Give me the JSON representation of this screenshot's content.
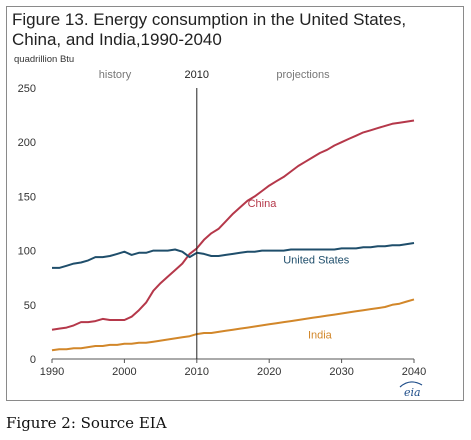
{
  "chart_data": {
    "type": "line",
    "title": "Figure 13. Energy consumption in the United States, China, and India,1990-2040",
    "ylabel": "quadrillion Btu",
    "xlabel": "",
    "xlim": [
      1990,
      2040
    ],
    "ylim": [
      0,
      250
    ],
    "x_ticks": [
      1990,
      2000,
      2010,
      2020,
      2030,
      2040
    ],
    "y_ticks": [
      0,
      50,
      100,
      150,
      200,
      250
    ],
    "grid": false,
    "annotations": {
      "history": "history",
      "divider_year": 2010,
      "divider_label": "2010",
      "projections": "projections"
    },
    "series": [
      {
        "name": "China",
        "color": "#b5384a",
        "x": [
          1990,
          1991,
          1992,
          1993,
          1994,
          1995,
          1996,
          1997,
          1998,
          1999,
          2000,
          2001,
          2002,
          2003,
          2004,
          2005,
          2006,
          2007,
          2008,
          2009,
          2010,
          2011,
          2012,
          2013,
          2014,
          2015,
          2016,
          2017,
          2018,
          2019,
          2020,
          2021,
          2022,
          2023,
          2024,
          2025,
          2026,
          2027,
          2028,
          2029,
          2030,
          2031,
          2032,
          2033,
          2034,
          2035,
          2036,
          2037,
          2038,
          2039,
          2040
        ],
        "y": [
          27,
          28,
          29,
          31,
          34,
          34,
          35,
          37,
          36,
          36,
          36,
          39,
          45,
          52,
          63,
          70,
          76,
          82,
          88,
          97,
          102,
          110,
          116,
          120,
          127,
          134,
          140,
          146,
          150,
          155,
          160,
          164,
          168,
          173,
          178,
          182,
          186,
          190,
          193,
          197,
          200,
          203,
          206,
          209,
          211,
          213,
          215,
          217,
          218,
          219,
          220
        ]
      },
      {
        "name": "United States",
        "color": "#1f4e6b",
        "x": [
          1990,
          1991,
          1992,
          1993,
          1994,
          1995,
          1996,
          1997,
          1998,
          1999,
          2000,
          2001,
          2002,
          2003,
          2004,
          2005,
          2006,
          2007,
          2008,
          2009,
          2010,
          2011,
          2012,
          2013,
          2014,
          2015,
          2016,
          2017,
          2018,
          2019,
          2020,
          2021,
          2022,
          2023,
          2024,
          2025,
          2026,
          2027,
          2028,
          2029,
          2030,
          2031,
          2032,
          2033,
          2034,
          2035,
          2036,
          2037,
          2038,
          2039,
          2040
        ],
        "y": [
          84,
          84,
          86,
          88,
          89,
          91,
          94,
          94,
          95,
          97,
          99,
          96,
          98,
          98,
          100,
          100,
          100,
          101,
          99,
          94,
          98,
          97,
          95,
          95,
          96,
          97,
          98,
          99,
          99,
          100,
          100,
          100,
          100,
          101,
          101,
          101,
          101,
          101,
          101,
          101,
          102,
          102,
          102,
          103,
          103,
          104,
          104,
          105,
          105,
          106,
          107
        ]
      },
      {
        "name": "India",
        "color": "#d2872a",
        "x": [
          1990,
          1991,
          1992,
          1993,
          1994,
          1995,
          1996,
          1997,
          1998,
          1999,
          2000,
          2001,
          2002,
          2003,
          2004,
          2005,
          2006,
          2007,
          2008,
          2009,
          2010,
          2011,
          2012,
          2013,
          2014,
          2015,
          2016,
          2017,
          2018,
          2019,
          2020,
          2021,
          2022,
          2023,
          2024,
          2025,
          2026,
          2027,
          2028,
          2029,
          2030,
          2031,
          2032,
          2033,
          2034,
          2035,
          2036,
          2037,
          2038,
          2039,
          2040
        ],
        "y": [
          8,
          9,
          9,
          10,
          10,
          11,
          12,
          12,
          13,
          13,
          14,
          14,
          15,
          15,
          16,
          17,
          18,
          19,
          20,
          21,
          23,
          24,
          24,
          25,
          26,
          27,
          28,
          29,
          30,
          31,
          32,
          33,
          34,
          35,
          36,
          37,
          38,
          39,
          40,
          41,
          42,
          43,
          44,
          45,
          46,
          47,
          48,
          50,
          51,
          53,
          55
        ]
      }
    ]
  },
  "caption": "Figure 2: Source EIA",
  "logo_text": "eia"
}
